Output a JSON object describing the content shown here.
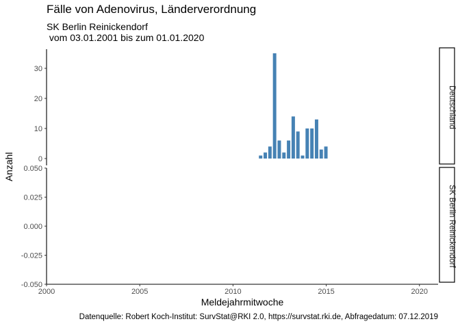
{
  "title": "Fälle von Adenovirus, Länderverordnung",
  "subtitle_line1": "SK Berlin Reinickendorf",
  "subtitle_line2": " vom 03.01.2001 bis zum 01.01.2020",
  "caption": "Datenquelle: Robert Koch-Institut: SurvStat@RKI 2.0, https://survstat.rki.de, Abfragedatum: 07.12.2019",
  "colors": {
    "bar": "#4682b4",
    "axis": "#000000",
    "strip_border": "#000000"
  },
  "chart_data": {
    "type": "bar",
    "xlabel": "Meldejahrmitwoche",
    "ylabel": "Anzahl",
    "xlim": [
      2000,
      2021
    ],
    "x_ticks": [
      "2000",
      "2005",
      "2010",
      "2015",
      "2020"
    ],
    "panels": [
      {
        "strip": "Deutschland",
        "ylim": [
          0,
          35
        ],
        "y_ticks": [
          "0",
          "10",
          "20",
          "30"
        ],
        "series": [
          {
            "x": [
              2011.5,
              2011.75,
              2012.0,
              2012.25,
              2012.5,
              2012.75,
              2013.0,
              2013.25,
              2013.5,
              2013.75,
              2014.0,
              2014.25,
              2014.5,
              2014.75,
              2015.0
            ],
            "values": [
              1,
              2,
              4,
              35,
              6,
              2,
              6,
              14,
              9,
              1,
              10,
              10,
              13,
              3,
              4
            ]
          }
        ]
      },
      {
        "strip": "SK Berlin Reinickendorf",
        "ylim": [
          -0.05,
          0.05
        ],
        "y_ticks": [
          "-0.050",
          "-0.025",
          "0.000",
          "0.025",
          "0.050"
        ],
        "series": []
      }
    ]
  }
}
